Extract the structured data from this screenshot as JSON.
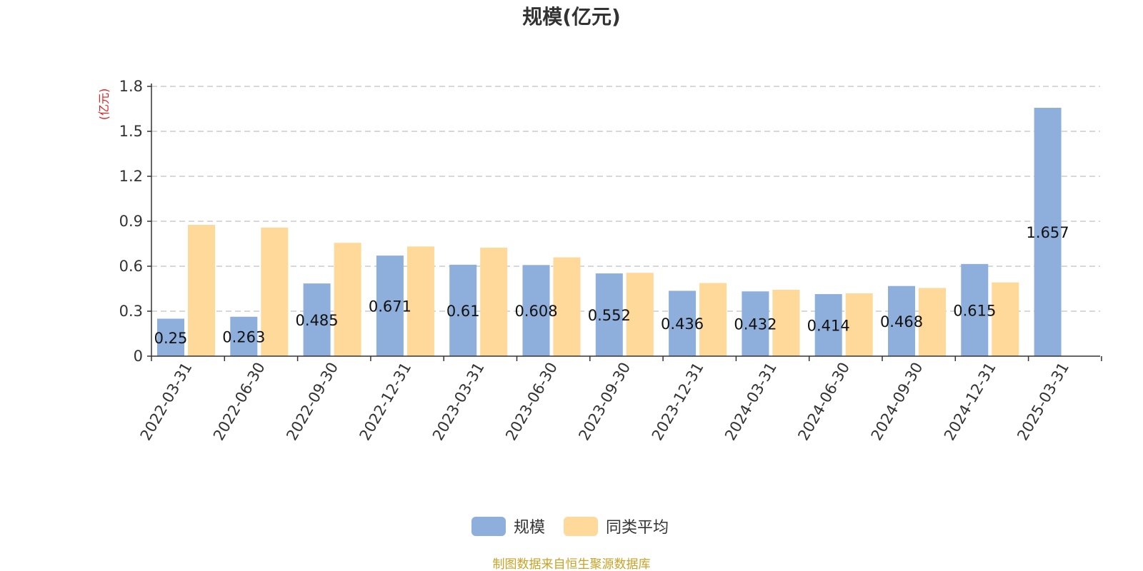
{
  "chart_data": {
    "type": "bar",
    "title": "规模(亿元)",
    "ylabel": "(亿元)",
    "ylim": [
      0,
      1.8
    ],
    "yticks": [
      0,
      0.3,
      0.6,
      0.9,
      1.2,
      1.5,
      1.8
    ],
    "ytick_labels": [
      "0",
      "0.3",
      "0.6",
      "0.9",
      "1.2",
      "1.5",
      "1.8"
    ],
    "grid": true,
    "legend_position": "bottom-center",
    "categories": [
      "2022-03-31",
      "2022-06-30",
      "2022-09-30",
      "2022-12-31",
      "2023-03-31",
      "2023-06-30",
      "2023-09-30",
      "2023-12-31",
      "2024-03-31",
      "2024-06-30",
      "2024-09-30",
      "2024-12-31",
      "2025-03-31"
    ],
    "series": [
      {
        "name": "规模",
        "color": "#8eaedb",
        "values": [
          0.25,
          0.263,
          0.485,
          0.671,
          0.61,
          0.608,
          0.552,
          0.436,
          0.432,
          0.414,
          0.468,
          0.615,
          1.657
        ],
        "data_labels": [
          "0.25",
          "0.263",
          "0.485",
          "0.671",
          "0.61",
          "0.608",
          "0.552",
          "0.436",
          "0.432",
          "0.414",
          "0.468",
          "0.615",
          "1.657"
        ]
      },
      {
        "name": "同类平均",
        "color": "#fed99a",
        "values": [
          0.876,
          0.858,
          0.756,
          0.732,
          0.724,
          0.659,
          0.556,
          0.488,
          0.443,
          0.419,
          0.455,
          0.492,
          null
        ]
      }
    ]
  },
  "colors": {
    "title": "#333333",
    "unit_label": "#e02020",
    "axis": "#333333",
    "grid": "#cccccc",
    "source": "#c9a227"
  },
  "source": "制图数据来自恒生聚源数据库"
}
